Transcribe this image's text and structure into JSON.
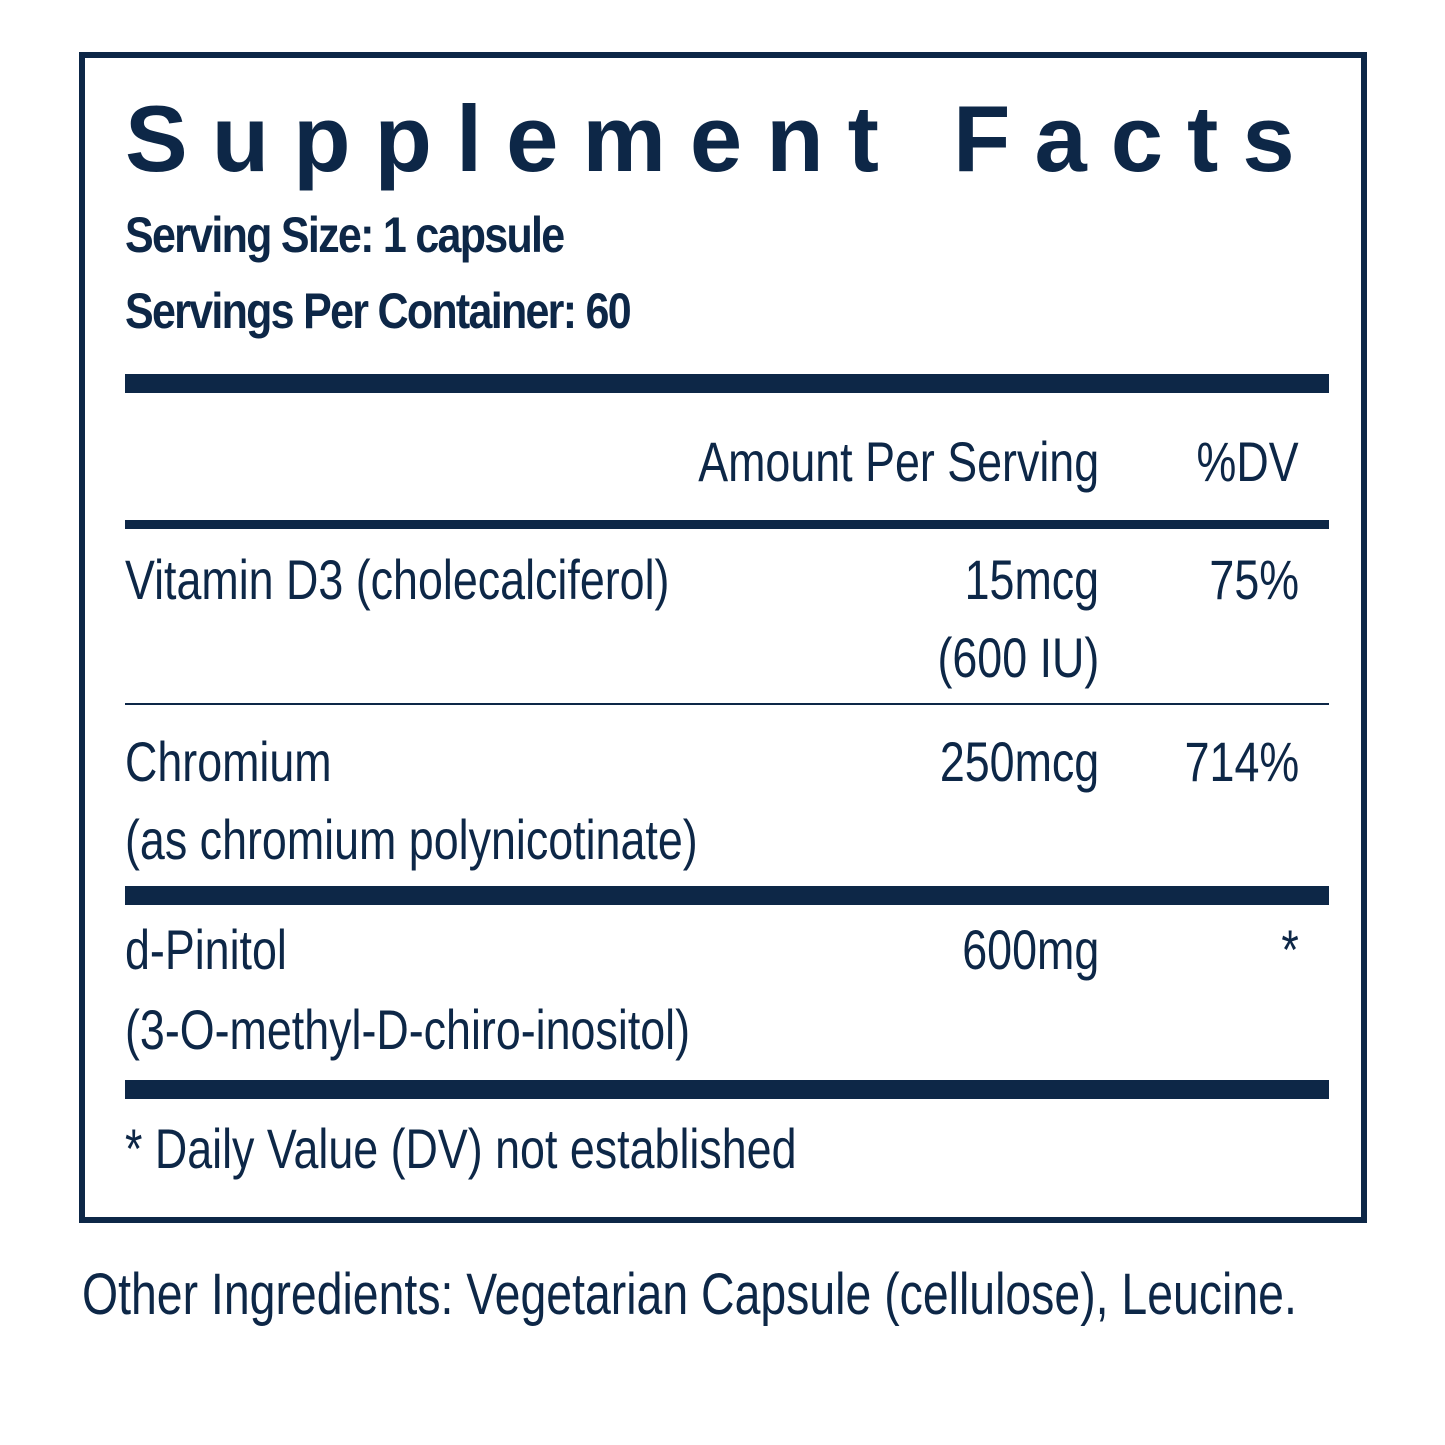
{
  "panel": {
    "title": "Supplement Facts",
    "serving_size": "Serving Size: 1 capsule",
    "servings_per_container": "Servings Per Container: 60",
    "header": {
      "amount": "Amount Per Serving",
      "dv": "%DV"
    },
    "rows": [
      {
        "name": "Vitamin D3 (cholecalciferol)",
        "name_sub": "",
        "amount": "15mcg",
        "amount_sub": "(600 IU)",
        "dv": "75%"
      },
      {
        "name": "Chromium",
        "name_sub": "(as chromium polynicotinate)",
        "amount": "250mcg",
        "amount_sub": "",
        "dv": "714%"
      },
      {
        "name": "d-Pinitol",
        "name_sub": "(3-O-methyl-D-chiro-inositol)",
        "amount": "600mg",
        "amount_sub": "",
        "dv": "*"
      }
    ],
    "footnote": "* Daily Value (DV) not established"
  },
  "other_ingredients": "Other Ingredients: Vegetarian Capsule (cellulose), Leucine.",
  "colors": {
    "ink": "#0d2747",
    "background": "#ffffff"
  }
}
